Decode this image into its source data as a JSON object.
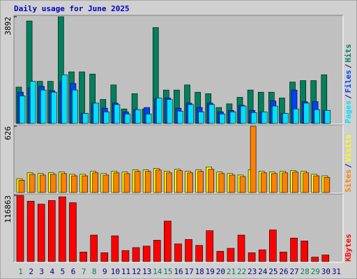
{
  "chart_data": [
    {
      "type": "bar",
      "title": "Daily usage for June 2025",
      "ylim": [
        0,
        3892
      ],
      "yticks": [
        3892
      ],
      "legend_separator": "/",
      "series": [
        {
          "name": "Hits",
          "color": "#00805c",
          "values": [
            1325,
            3737,
            1537,
            1537,
            3892,
            1882,
            1882,
            1802,
            875,
            1405,
            530,
            1087,
            530,
            3498,
            1219,
            1219,
            1405,
            1140,
            1087,
            583,
            716,
            954,
            1219,
            1140,
            1140,
            928,
            1511,
            1564,
            1564,
            1776,
            null
          ]
        },
        {
          "name": "Files",
          "color": "#0040ff",
          "values": [
            1140,
            1299,
            1352,
            1193,
            1537,
            1458,
            371,
            742,
            557,
            742,
            424,
            504,
            583,
            901,
            928,
            557,
            742,
            583,
            742,
            424,
            477,
            663,
            477,
            424,
            822,
            371,
            1219,
            795,
            795,
            477,
            null
          ]
        },
        {
          "name": "Pages",
          "color": "#00e0ff",
          "values": [
            1007,
            1537,
            1219,
            1140,
            1776,
            1219,
            371,
            742,
            424,
            689,
            345,
            504,
            345,
            928,
            875,
            451,
            689,
            424,
            689,
            345,
            424,
            636,
            398,
            424,
            636,
            371,
            530,
            742,
            504,
            477,
            null
          ]
        }
      ]
    },
    {
      "type": "bar",
      "ylim": [
        0,
        626
      ],
      "yticks": [
        626
      ],
      "legend_separator": "/",
      "series": [
        {
          "name": "Visits",
          "color": "#ffff00",
          "values": [
            131,
            186,
            179,
            186,
            193,
            172,
            172,
            200,
            179,
            200,
            193,
            213,
            213,
            227,
            200,
            220,
            200,
            213,
            241,
            193,
            179,
            165,
            213,
            200,
            193,
            200,
            206,
            200,
            172,
            158,
            null
          ]
        },
        {
          "name": "Sites",
          "color": "#ff8000",
          "values": [
            117,
            172,
            165,
            172,
            179,
            158,
            158,
            186,
            165,
            186,
            179,
            200,
            200,
            213,
            186,
            206,
            186,
            200,
            220,
            179,
            165,
            151,
            626,
            186,
            179,
            186,
            193,
            186,
            158,
            144,
            null
          ]
        }
      ]
    },
    {
      "type": "bar",
      "ylim": [
        0,
        116863
      ],
      "yticks": [
        116863
      ],
      "categories": [
        "1",
        "2",
        "3",
        "4",
        "5",
        "6",
        "7",
        "8",
        "9",
        "10",
        "11",
        "12",
        "13",
        "14",
        "15",
        "16",
        "17",
        "18",
        "19",
        "20",
        "21",
        "22",
        "23",
        "24",
        "25",
        "26",
        "27",
        "28",
        "29",
        "30",
        "31"
      ],
      "category_colors": [
        "#00805c",
        "#000080",
        "#000080",
        "#000080",
        "#000080",
        "#000080",
        "#00805c",
        "#00805c",
        "#000080",
        "#000080",
        "#000080",
        "#000080",
        "#000080",
        "#00805c",
        "#00805c",
        "#000080",
        "#000080",
        "#000080",
        "#000080",
        "#000080",
        "#00805c",
        "#00805c",
        "#000080",
        "#000080",
        "#000080",
        "#000080",
        "#000080",
        "#00805c",
        "#00805c",
        "#000080",
        "#000080"
      ],
      "series": [
        {
          "name": "KBytes",
          "color": "#ff0000",
          "values": [
            116863,
            106436,
            101244,
            107734,
            114224,
            103840,
            16874,
            46728,
            15576,
            45430,
            19470,
            24662,
            27258,
            37642,
            71390,
            31152,
            38940,
            28556,
            54516,
            18172,
            23364,
            46728,
            15576,
            20768,
            55814,
            16874,
            41536,
            36344,
            7788,
            11682,
            null
          ]
        }
      ]
    }
  ]
}
